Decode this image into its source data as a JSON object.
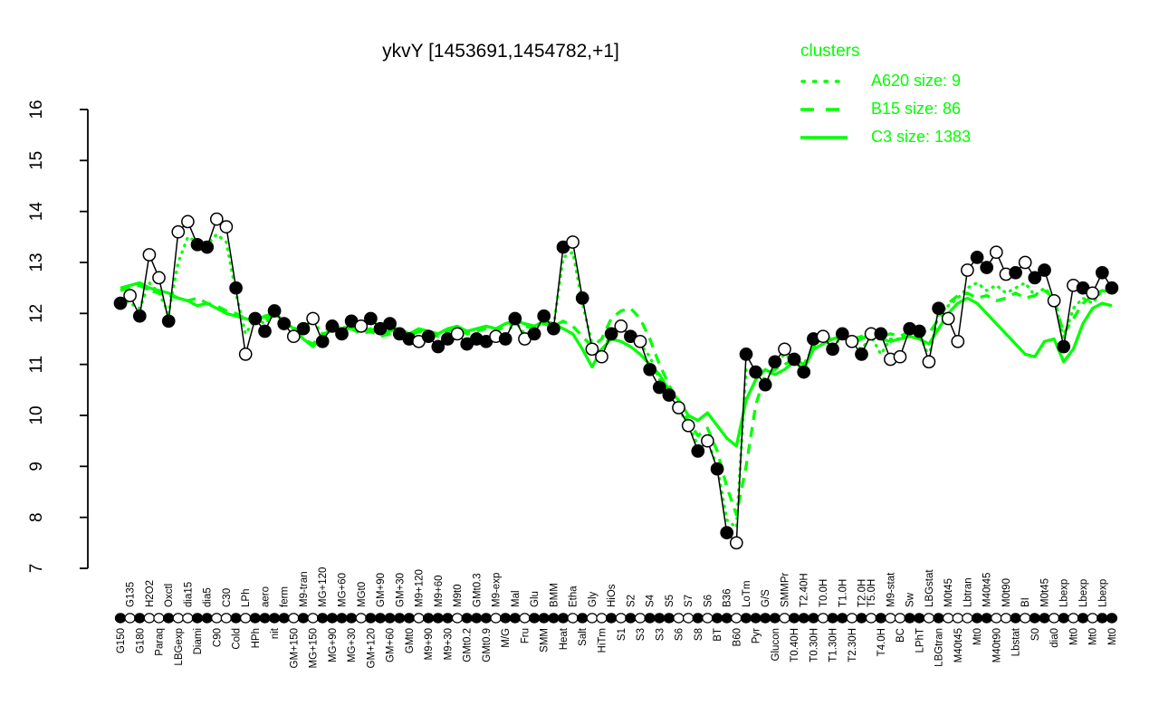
{
  "title": "ykvY [1453691,1454782,+1]",
  "legend": {
    "title": "clusters",
    "color": "#00ff00",
    "entries": [
      {
        "label": "A620 size: 9",
        "line_style": "dotted"
      },
      {
        "label": "B15 size: 86",
        "line_style": "dashed"
      },
      {
        "label": "C3 size: 1383",
        "line_style": "solid"
      }
    ]
  },
  "colors": {
    "gene_series": "#000000",
    "cluster_lines": "#00ff00",
    "background": "#ffffff"
  },
  "chart_data": {
    "type": "line",
    "title": "ykvY [1453691,1454782,+1]",
    "xlabel": "",
    "ylabel": "",
    "ylim": [
      7,
      16
    ],
    "yticks": [
      7,
      8,
      9,
      10,
      11,
      12,
      13,
      14,
      15,
      16
    ],
    "grid": false,
    "legend_position": "top-right",
    "layout": {
      "axis_x": 97,
      "x_start": 133,
      "x_step": 10.63,
      "y_top": 121,
      "y_bottom": 628,
      "marker_row_y": 683,
      "top_label_y": 671,
      "bottom_label_y": 694
    },
    "categories": [
      "G150",
      "G135",
      "G180",
      "H2O2",
      "Paraq",
      "Oxctl",
      "LBGexp",
      "dia15",
      "Diami",
      "dia5",
      "C90",
      "C30",
      "Cold",
      "LPh",
      "HPh",
      "aero",
      "nit",
      "ferm",
      "GM+150",
      "M9-tran",
      "MG+150",
      "MG+120",
      "MG+90",
      "MG+60",
      "MG+30",
      "MGt0",
      "GM+120",
      "GM+90",
      "GM+60",
      "GM+30",
      "GMt0",
      "M9+120",
      "M9+90",
      "M9+60",
      "M9+30",
      "M9t0",
      "GMt0.2",
      "GMt0.3",
      "GMt0.9",
      "M9-exp",
      "M/G",
      "Mal",
      "Fru",
      "Glu",
      "SMM",
      "BMM",
      "Heat",
      "Etha",
      "Salt",
      "Gly",
      "HiTm",
      "HiOs",
      "S1",
      "S2",
      "S3",
      "S4",
      "S3",
      "S5",
      "S6",
      "S7",
      "S8",
      "S6",
      "BT",
      "B36",
      "B60",
      "LoTm",
      "Pyr",
      "G/S",
      "Glucon",
      "SMMPr",
      "T0.40H",
      "T2.40H",
      "T0.30H",
      "T0.0H",
      "T1.30H",
      "T1.0H",
      "T2.30H",
      "T2.0H",
      "T5.0H",
      "T4.0H",
      "M9-stat",
      "BC",
      "Sw",
      "LPhT",
      "LBGstat",
      "LBGtran",
      "M0t45",
      "M40t45",
      "Lbtran",
      "Mt0",
      "M40t45",
      "M40t90",
      "M0t90",
      "Lbstat",
      "BI",
      "S0",
      "M0t45",
      "dia0",
      "Lbexp",
      "Mt0",
      "Lbexp",
      "Mt0",
      "Lbexp",
      "Mt0"
    ],
    "label_rows": "btbtbtbtbtbtbtbtbtbtbtbtbtbtbtbtbtbtbtbtbtbtbtbtbtbtbtbtbtbtbtbtbtbtbtbtbtbtbttbtbtbtbtbtbtbtbtbtbtbtbtb",
    "gene_series": {
      "name": "ykvY",
      "color": "#000000",
      "values": [
        12.2,
        12.35,
        11.95,
        13.15,
        12.7,
        11.85,
        13.6,
        13.8,
        13.35,
        13.3,
        13.85,
        13.7,
        12.5,
        11.2,
        11.9,
        11.65,
        12.05,
        11.8,
        11.55,
        11.7,
        11.9,
        11.45,
        11.75,
        11.6,
        11.85,
        11.75,
        11.9,
        11.7,
        11.8,
        11.6,
        11.5,
        11.45,
        11.55,
        11.35,
        11.5,
        11.6,
        11.4,
        11.5,
        11.45,
        11.55,
        11.5,
        11.9,
        11.5,
        11.6,
        11.95,
        11.7,
        13.3,
        13.4,
        12.3,
        11.3,
        11.15,
        11.6,
        11.75,
        11.55,
        11.45,
        10.9,
        10.55,
        10.4,
        10.15,
        9.8,
        9.3,
        9.5,
        8.95,
        7.7,
        7.5,
        11.2,
        10.85,
        10.6,
        11.05,
        11.3,
        11.1,
        10.85,
        11.5,
        11.55,
        11.3,
        11.6,
        11.45,
        11.2,
        11.6,
        11.6,
        11.1,
        11.15,
        11.7,
        11.65,
        11.05,
        12.1,
        11.9,
        11.45,
        12.85,
        13.1,
        12.9,
        13.2,
        12.77,
        12.8,
        13.0,
        12.7,
        12.85,
        12.25,
        11.35,
        12.55,
        12.5,
        12.4,
        12.8,
        12.5
      ],
      "filled": [
        1,
        0,
        1,
        0,
        0,
        1,
        0,
        0,
        1,
        1,
        0,
        0,
        1,
        0,
        1,
        1,
        1,
        1,
        0,
        1,
        0,
        1,
        1,
        1,
        1,
        0,
        1,
        1,
        1,
        1,
        1,
        0,
        1,
        1,
        1,
        0,
        1,
        1,
        1,
        0,
        1,
        1,
        0,
        1,
        1,
        1,
        1,
        0,
        1,
        0,
        0,
        1,
        0,
        1,
        0,
        1,
        1,
        1,
        0,
        0,
        1,
        0,
        1,
        1,
        0,
        1,
        1,
        1,
        1,
        0,
        1,
        1,
        1,
        0,
        1,
        1,
        0,
        1,
        0,
        1,
        0,
        0,
        1,
        1,
        0,
        1,
        0,
        0,
        0,
        1,
        1,
        0,
        0,
        1,
        0,
        1,
        1,
        0,
        1,
        0,
        1,
        0,
        1,
        1
      ]
    },
    "cluster_series": [
      {
        "name": "C3 size: 1383",
        "line_style": "solid",
        "color": "#00ff00",
        "values": [
          12.5,
          12.55,
          12.6,
          12.5,
          12.45,
          12.4,
          12.3,
          12.25,
          12.15,
          12.2,
          12.1,
          12.0,
          11.95,
          11.9,
          11.85,
          11.95,
          12.0,
          11.85,
          11.7,
          11.5,
          11.35,
          11.55,
          11.7,
          11.6,
          11.75,
          11.65,
          11.7,
          11.6,
          11.65,
          11.7,
          11.6,
          11.7,
          11.65,
          11.6,
          11.7,
          11.75,
          11.65,
          11.7,
          11.75,
          11.7,
          11.8,
          11.85,
          11.8,
          11.75,
          11.85,
          11.8,
          11.7,
          11.6,
          11.3,
          10.95,
          11.3,
          11.5,
          11.45,
          11.35,
          11.2,
          11.0,
          10.8,
          10.5,
          10.3,
          10.0,
          9.9,
          10.05,
          9.8,
          9.55,
          9.4,
          10.3,
          10.7,
          10.9,
          10.8,
          10.9,
          11.05,
          10.9,
          11.3,
          11.4,
          11.5,
          11.55,
          11.4,
          11.5,
          11.6,
          11.5,
          11.45,
          11.5,
          11.55,
          11.5,
          11.4,
          11.7,
          12.0,
          12.2,
          12.3,
          12.2,
          12.0,
          11.8,
          11.6,
          11.4,
          11.2,
          11.15,
          11.45,
          11.5,
          11.05,
          11.3,
          11.8,
          12.1,
          12.2,
          12.15
        ]
      },
      {
        "name": "B15 size: 86",
        "line_style": "dashed",
        "color": "#00ff00",
        "values": [
          12.45,
          12.5,
          12.55,
          12.45,
          12.4,
          12.35,
          12.3,
          12.25,
          12.3,
          12.2,
          12.15,
          12.05,
          12.0,
          11.9,
          11.8,
          11.9,
          11.95,
          11.8,
          11.65,
          11.5,
          11.4,
          11.6,
          11.65,
          11.55,
          11.7,
          11.6,
          11.65,
          11.55,
          11.6,
          11.65,
          11.55,
          11.65,
          11.6,
          11.55,
          11.65,
          11.7,
          11.6,
          11.65,
          11.7,
          11.65,
          11.75,
          11.8,
          11.75,
          11.7,
          11.8,
          11.75,
          11.85,
          11.75,
          11.55,
          11.35,
          11.5,
          11.9,
          12.05,
          12.1,
          11.9,
          11.5,
          11.0,
          10.6,
          10.2,
          9.9,
          9.6,
          9.75,
          9.3,
          8.6,
          8.05,
          9.0,
          10.2,
          10.8,
          10.9,
          11.0,
          11.1,
          11.0,
          11.35,
          11.45,
          11.55,
          11.6,
          11.5,
          11.55,
          11.65,
          11.55,
          11.6,
          11.55,
          11.65,
          11.7,
          11.6,
          11.9,
          12.2,
          12.35,
          12.4,
          12.3,
          12.35,
          12.25,
          12.3,
          12.4,
          12.3,
          12.35,
          12.45,
          12.3,
          11.6,
          11.9,
          12.2,
          12.35,
          12.45,
          12.4
        ]
      },
      {
        "name": "A620 size: 9",
        "line_style": "dotted",
        "color": "#00ff00",
        "values": [
          12.3,
          12.2,
          12.1,
          12.6,
          12.4,
          12.0,
          13.0,
          13.5,
          13.4,
          13.35,
          13.55,
          13.4,
          12.4,
          11.6,
          11.9,
          11.8,
          12.0,
          11.85,
          11.7,
          11.75,
          11.85,
          11.6,
          11.8,
          11.7,
          11.8,
          11.75,
          11.85,
          11.75,
          11.8,
          11.65,
          11.55,
          11.5,
          11.6,
          11.45,
          11.55,
          11.65,
          11.5,
          11.55,
          11.5,
          11.6,
          11.55,
          11.85,
          11.6,
          11.65,
          11.9,
          11.75,
          13.1,
          13.2,
          12.2,
          11.4,
          11.25,
          11.6,
          11.7,
          11.55,
          11.4,
          11.15,
          10.7,
          10.45,
          10.1,
          9.85,
          9.4,
          9.5,
          9.0,
          7.95,
          7.8,
          10.9,
          10.75,
          10.55,
          11.0,
          11.2,
          11.05,
          10.9,
          11.4,
          11.5,
          11.35,
          11.55,
          11.4,
          11.3,
          11.55,
          11.2,
          11.5,
          11.5,
          11.65,
          11.6,
          11.15,
          12.0,
          12.15,
          12.3,
          12.5,
          12.6,
          12.45,
          12.55,
          12.4,
          12.5,
          12.6,
          12.35,
          12.5,
          12.3,
          11.5,
          12.1,
          12.3,
          12.2,
          12.45,
          12.4
        ]
      }
    ]
  }
}
